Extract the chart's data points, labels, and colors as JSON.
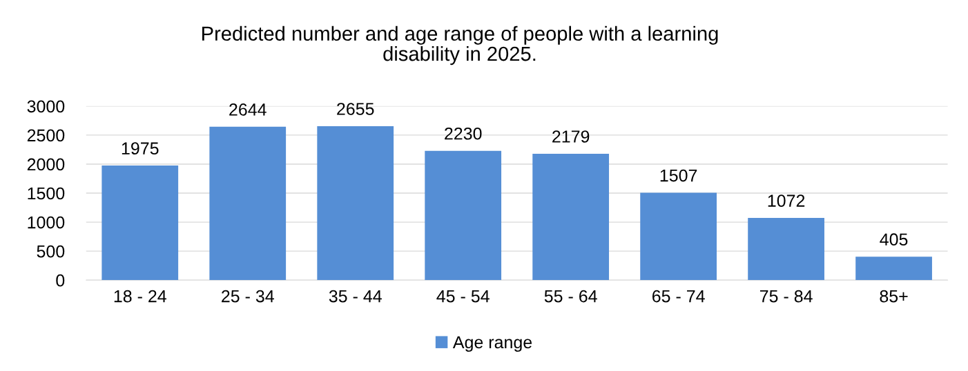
{
  "chart_data": {
    "type": "bar",
    "title": "Predicted number and age range of people with a learning\ndisability in 2025.",
    "categories": [
      "18 - 24",
      "25 - 34",
      "35 - 44",
      "45 - 54",
      "55 - 64",
      "65 - 74",
      "75 - 84",
      "85+"
    ],
    "series": [
      {
        "name": "Age range",
        "color": "#558ed5",
        "values": [
          1975,
          2644,
          2655,
          2230,
          2179,
          1507,
          1072,
          405
        ]
      }
    ],
    "ylim": [
      0,
      3000
    ],
    "yticks": [
      0,
      500,
      1000,
      1500,
      2000,
      2500,
      3000
    ],
    "grid": "y",
    "legend": "bottom",
    "data_labels": true
  }
}
